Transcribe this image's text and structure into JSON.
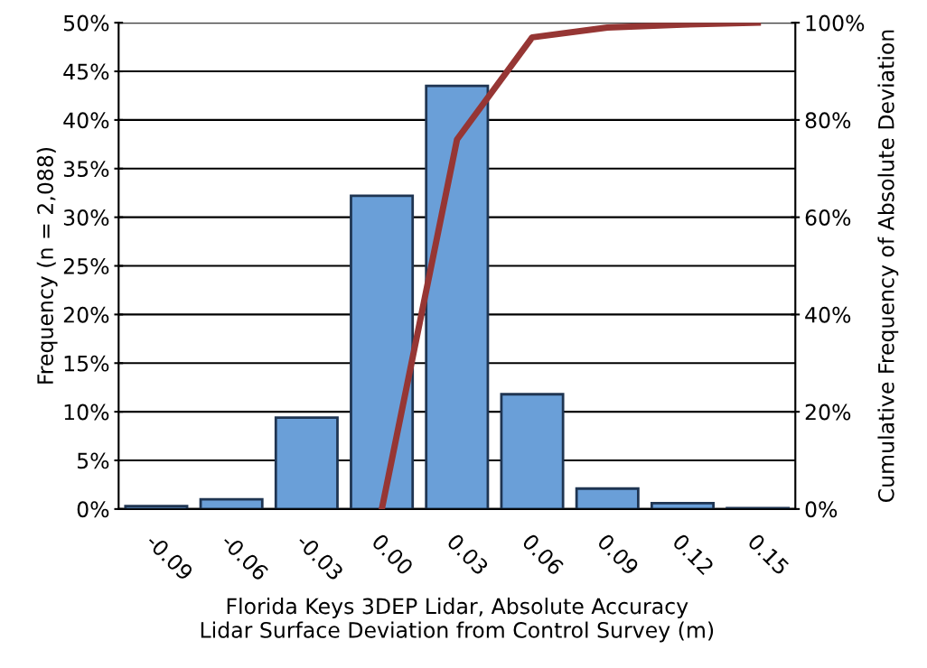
{
  "chart_data": {
    "type": "bar",
    "xlabel": "Florida Keys 3DEP Lidar, Absolute Accuracy\nLidar Surface Deviation from Control Survey (m)",
    "ylabel": "Frequency (n = 2,088)",
    "y2label": "Cumulative Frequency of Absolute Deviation",
    "categories": [
      "-0.09",
      "-0.06",
      "-0.03",
      "0.00",
      "0.03",
      "0.06",
      "0.09",
      "0.12",
      "0.15"
    ],
    "series": [
      {
        "color": "#6a9fd8",
        "values": [
          0.3,
          1.0,
          9.4,
          32.2,
          43.5,
          11.8,
          2.1,
          0.6,
          0.1
        ]
      },
      {
        "type": "line",
        "axis": "y2",
        "color": "#963634",
        "values": [
          null,
          null,
          null,
          0,
          76,
          97,
          99,
          99.6,
          100
        ]
      }
    ],
    "ylim": [
      0,
      50
    ],
    "yticks": [
      {
        "value": 0,
        "label": "0%"
      },
      {
        "value": 5,
        "label": "5%"
      },
      {
        "value": 10,
        "label": "10%"
      },
      {
        "value": 15,
        "label": "15%"
      },
      {
        "value": 20,
        "label": "20%"
      },
      {
        "value": 25,
        "label": "25%"
      },
      {
        "value": 30,
        "label": "30%"
      },
      {
        "value": 35,
        "label": "35%"
      },
      {
        "value": 40,
        "label": "40%"
      },
      {
        "value": 45,
        "label": "45%"
      },
      {
        "value": 50,
        "label": "50%"
      }
    ],
    "y2lim": [
      0,
      100
    ],
    "y2ticks": [
      {
        "value": 0,
        "label": "0%"
      },
      {
        "value": 20,
        "label": "20%"
      },
      {
        "value": 40,
        "label": "40%"
      },
      {
        "value": 60,
        "label": "60%"
      },
      {
        "value": 80,
        "label": "80%"
      },
      {
        "value": 100,
        "label": "100%"
      }
    ],
    "grid": "y"
  }
}
